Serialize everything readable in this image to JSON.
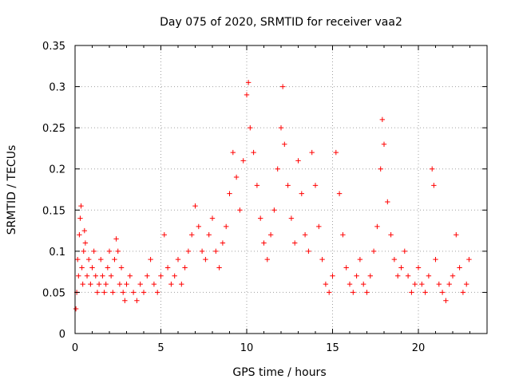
{
  "chart_data": {
    "type": "scatter",
    "title": "Day 075 of 2020, SRMTID for receiver vaa2",
    "xlabel": "GPS time / hours",
    "ylabel": "SRMTID / TECUs",
    "xlim": [
      0,
      24
    ],
    "ylim": [
      0,
      0.35
    ],
    "x_ticks": [
      0,
      5,
      10,
      15,
      20
    ],
    "x_tick_labels": [
      "0",
      "5",
      "10",
      "15",
      "20"
    ],
    "y_ticks": [
      0,
      0.05,
      0.1,
      0.15,
      0.2,
      0.25,
      0.3,
      0.35
    ],
    "y_tick_labels": [
      "0",
      "0.05",
      "0.1",
      "0.15",
      "0.2",
      "0.25",
      "0.3",
      "0.35"
    ],
    "grid": true,
    "marker": "+",
    "marker_color": "#ff0000",
    "series": [
      {
        "name": "SRMTID",
        "points": [
          [
            0.05,
            0.03
          ],
          [
            0.1,
            0.05
          ],
          [
            0.15,
            0.09
          ],
          [
            0.2,
            0.07
          ],
          [
            0.25,
            0.12
          ],
          [
            0.3,
            0.14
          ],
          [
            0.35,
            0.155
          ],
          [
            0.4,
            0.08
          ],
          [
            0.45,
            0.06
          ],
          [
            0.5,
            0.1
          ],
          [
            0.55,
            0.125
          ],
          [
            0.6,
            0.11
          ],
          [
            0.7,
            0.07
          ],
          [
            0.8,
            0.09
          ],
          [
            0.9,
            0.06
          ],
          [
            1.0,
            0.08
          ],
          [
            1.1,
            0.1
          ],
          [
            1.2,
            0.07
          ],
          [
            1.3,
            0.05
          ],
          [
            1.4,
            0.06
          ],
          [
            1.5,
            0.09
          ],
          [
            1.6,
            0.07
          ],
          [
            1.7,
            0.05
          ],
          [
            1.8,
            0.06
          ],
          [
            1.9,
            0.08
          ],
          [
            2.0,
            0.1
          ],
          [
            2.1,
            0.07
          ],
          [
            2.2,
            0.05
          ],
          [
            2.3,
            0.09
          ],
          [
            2.4,
            0.115
          ],
          [
            2.5,
            0.1
          ],
          [
            2.6,
            0.06
          ],
          [
            2.7,
            0.08
          ],
          [
            2.8,
            0.05
          ],
          [
            2.9,
            0.04
          ],
          [
            3.0,
            0.06
          ],
          [
            3.2,
            0.07
          ],
          [
            3.4,
            0.05
          ],
          [
            3.6,
            0.04
          ],
          [
            3.8,
            0.06
          ],
          [
            4.0,
            0.05
          ],
          [
            4.2,
            0.07
          ],
          [
            4.4,
            0.09
          ],
          [
            4.6,
            0.06
          ],
          [
            4.8,
            0.05
          ],
          [
            5.0,
            0.07
          ],
          [
            5.2,
            0.12
          ],
          [
            5.4,
            0.08
          ],
          [
            5.6,
            0.06
          ],
          [
            5.8,
            0.07
          ],
          [
            6.0,
            0.09
          ],
          [
            6.2,
            0.06
          ],
          [
            6.4,
            0.08
          ],
          [
            6.6,
            0.1
          ],
          [
            6.8,
            0.12
          ],
          [
            7.0,
            0.155
          ],
          [
            7.2,
            0.13
          ],
          [
            7.4,
            0.1
          ],
          [
            7.6,
            0.09
          ],
          [
            7.8,
            0.12
          ],
          [
            8.0,
            0.14
          ],
          [
            8.2,
            0.1
          ],
          [
            8.4,
            0.08
          ],
          [
            8.6,
            0.11
          ],
          [
            8.8,
            0.13
          ],
          [
            9.0,
            0.17
          ],
          [
            9.2,
            0.22
          ],
          [
            9.4,
            0.19
          ],
          [
            9.6,
            0.15
          ],
          [
            9.8,
            0.21
          ],
          [
            10.0,
            0.29
          ],
          [
            10.1,
            0.305
          ],
          [
            10.2,
            0.25
          ],
          [
            10.4,
            0.22
          ],
          [
            10.6,
            0.18
          ],
          [
            10.8,
            0.14
          ],
          [
            11.0,
            0.11
          ],
          [
            11.2,
            0.09
          ],
          [
            11.4,
            0.12
          ],
          [
            11.6,
            0.15
          ],
          [
            11.8,
            0.2
          ],
          [
            12.0,
            0.25
          ],
          [
            12.1,
            0.3
          ],
          [
            12.2,
            0.23
          ],
          [
            12.4,
            0.18
          ],
          [
            12.6,
            0.14
          ],
          [
            12.8,
            0.11
          ],
          [
            13.0,
            0.21
          ],
          [
            13.2,
            0.17
          ],
          [
            13.4,
            0.12
          ],
          [
            13.6,
            0.1
          ],
          [
            13.8,
            0.22
          ],
          [
            14.0,
            0.18
          ],
          [
            14.2,
            0.13
          ],
          [
            14.4,
            0.09
          ],
          [
            14.6,
            0.06
          ],
          [
            14.8,
            0.05
          ],
          [
            15.0,
            0.07
          ],
          [
            15.2,
            0.22
          ],
          [
            15.4,
            0.17
          ],
          [
            15.6,
            0.12
          ],
          [
            15.8,
            0.08
          ],
          [
            16.0,
            0.06
          ],
          [
            16.2,
            0.05
          ],
          [
            16.4,
            0.07
          ],
          [
            16.6,
            0.09
          ],
          [
            16.8,
            0.06
          ],
          [
            17.0,
            0.05
          ],
          [
            17.2,
            0.07
          ],
          [
            17.4,
            0.1
          ],
          [
            17.6,
            0.13
          ],
          [
            17.8,
            0.2
          ],
          [
            17.9,
            0.26
          ],
          [
            18.0,
            0.23
          ],
          [
            18.2,
            0.16
          ],
          [
            18.4,
            0.12
          ],
          [
            18.6,
            0.09
          ],
          [
            18.8,
            0.07
          ],
          [
            19.0,
            0.08
          ],
          [
            19.2,
            0.1
          ],
          [
            19.4,
            0.07
          ],
          [
            19.6,
            0.05
          ],
          [
            19.8,
            0.06
          ],
          [
            20.0,
            0.08
          ],
          [
            20.2,
            0.06
          ],
          [
            20.4,
            0.05
          ],
          [
            20.6,
            0.07
          ],
          [
            20.8,
            0.2
          ],
          [
            20.9,
            0.18
          ],
          [
            21.0,
            0.09
          ],
          [
            21.2,
            0.06
          ],
          [
            21.4,
            0.05
          ],
          [
            21.6,
            0.04
          ],
          [
            21.8,
            0.06
          ],
          [
            22.0,
            0.07
          ],
          [
            22.2,
            0.12
          ],
          [
            22.4,
            0.08
          ],
          [
            22.6,
            0.05
          ],
          [
            22.8,
            0.06
          ],
          [
            22.95,
            0.09
          ]
        ]
      }
    ]
  }
}
